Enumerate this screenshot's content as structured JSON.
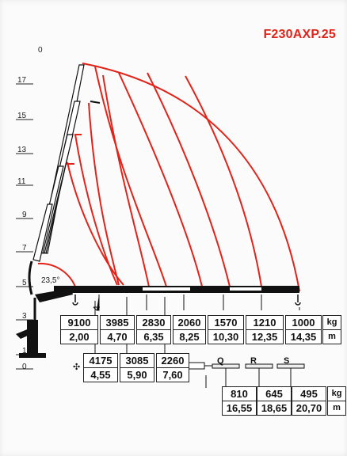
{
  "title": "F230AXP.25",
  "angle_label": "23,5°",
  "height_ticks": [
    "0",
    "17",
    "15",
    "13",
    "11",
    "9",
    "7",
    "5",
    "3",
    "1",
    "0"
  ],
  "units": {
    "load": "kg",
    "reach": "m"
  },
  "main_loads": [
    {
      "kg": "9100",
      "m": "2,00"
    },
    {
      "kg": "3985",
      "m": "4,70"
    },
    {
      "kg": "2830",
      "m": "6,35"
    },
    {
      "kg": "2060",
      "m": "8,25"
    },
    {
      "kg": "1570",
      "m": "10,30"
    },
    {
      "kg": "1210",
      "m": "12,35"
    },
    {
      "kg": "1000",
      "m": "14,35"
    }
  ],
  "lower_loads": [
    {
      "kg": "4175",
      "m": "4,55"
    },
    {
      "kg": "3085",
      "m": "5,90"
    },
    {
      "kg": "2260",
      "m": "7,60"
    }
  ],
  "extension_labels": [
    "Q",
    "R",
    "S"
  ],
  "extension_loads": [
    {
      "kg": "810",
      "m": "16,55"
    },
    {
      "kg": "645",
      "m": "18,65"
    },
    {
      "kg": "495",
      "m": "20,70"
    }
  ],
  "special_symbol": "✣",
  "colors": {
    "title": "#e2231a",
    "load_curves": "#e2231a",
    "boom": "#111111"
  },
  "icons": [
    "crane-boom-diagram-icon",
    "hook-icon",
    "jib-extension-icon"
  ]
}
